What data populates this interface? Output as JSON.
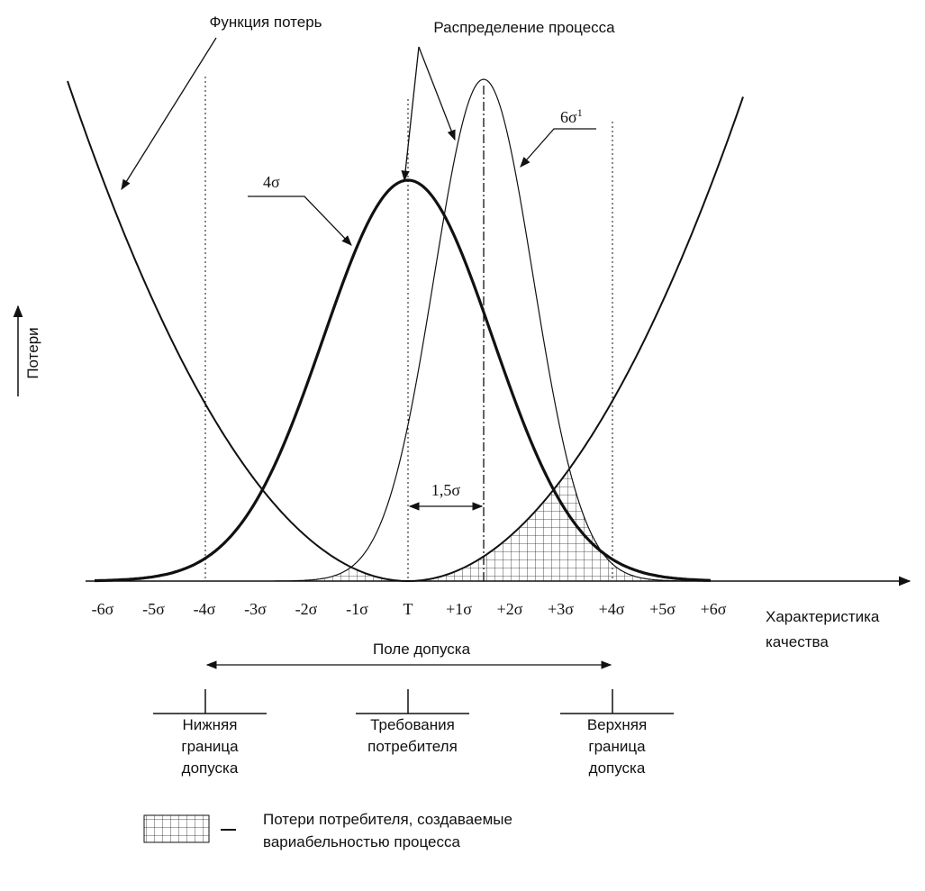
{
  "labels": {
    "loss_function": "Функция потерь",
    "process_distribution": "Распределение процесса",
    "six_sigma": "6σ",
    "six_sigma_sup": "1",
    "four_sigma": "4σ",
    "y_axis": "Потери",
    "shift": "1,5σ",
    "x_axis": [
      "Характеристика",
      "качества"
    ],
    "tolerance_field": "Поле допуска"
  },
  "axis": {
    "ticks": [
      "-6σ",
      "-5σ",
      "-4σ",
      "-3σ",
      "-2σ",
      "-1σ",
      "T",
      "+1σ",
      "+2σ",
      "+3σ",
      "+4σ",
      "+5σ",
      "+6σ"
    ]
  },
  "limits": [
    {
      "lines": [
        "Нижняя",
        "граница",
        "допуска"
      ]
    },
    {
      "lines": [
        "Требования",
        "потребителя"
      ]
    },
    {
      "lines": [
        "Верхняя",
        "граница",
        "допуска"
      ]
    }
  ],
  "legend": {
    "lines": [
      "Потери потребителя, создаваемые",
      "вариабельностью процесса"
    ]
  }
}
